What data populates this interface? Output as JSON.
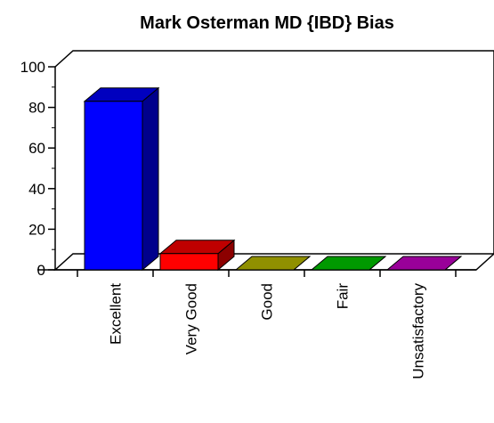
{
  "chart_data": {
    "type": "bar3d",
    "title": "Mark Osterman MD {IBD} Bias",
    "categories": [
      "Excellent",
      "Very Good",
      "Good",
      "Fair",
      "Unsatisfactory"
    ],
    "values": [
      83,
      8,
      0,
      0,
      0
    ],
    "colors": [
      "#0000ff",
      "#ff0000",
      "#c0c000",
      "#00cc00",
      "#cc00cc"
    ],
    "ylim": [
      0,
      100
    ],
    "yticks": [
      0,
      20,
      40,
      60,
      80,
      100
    ]
  }
}
